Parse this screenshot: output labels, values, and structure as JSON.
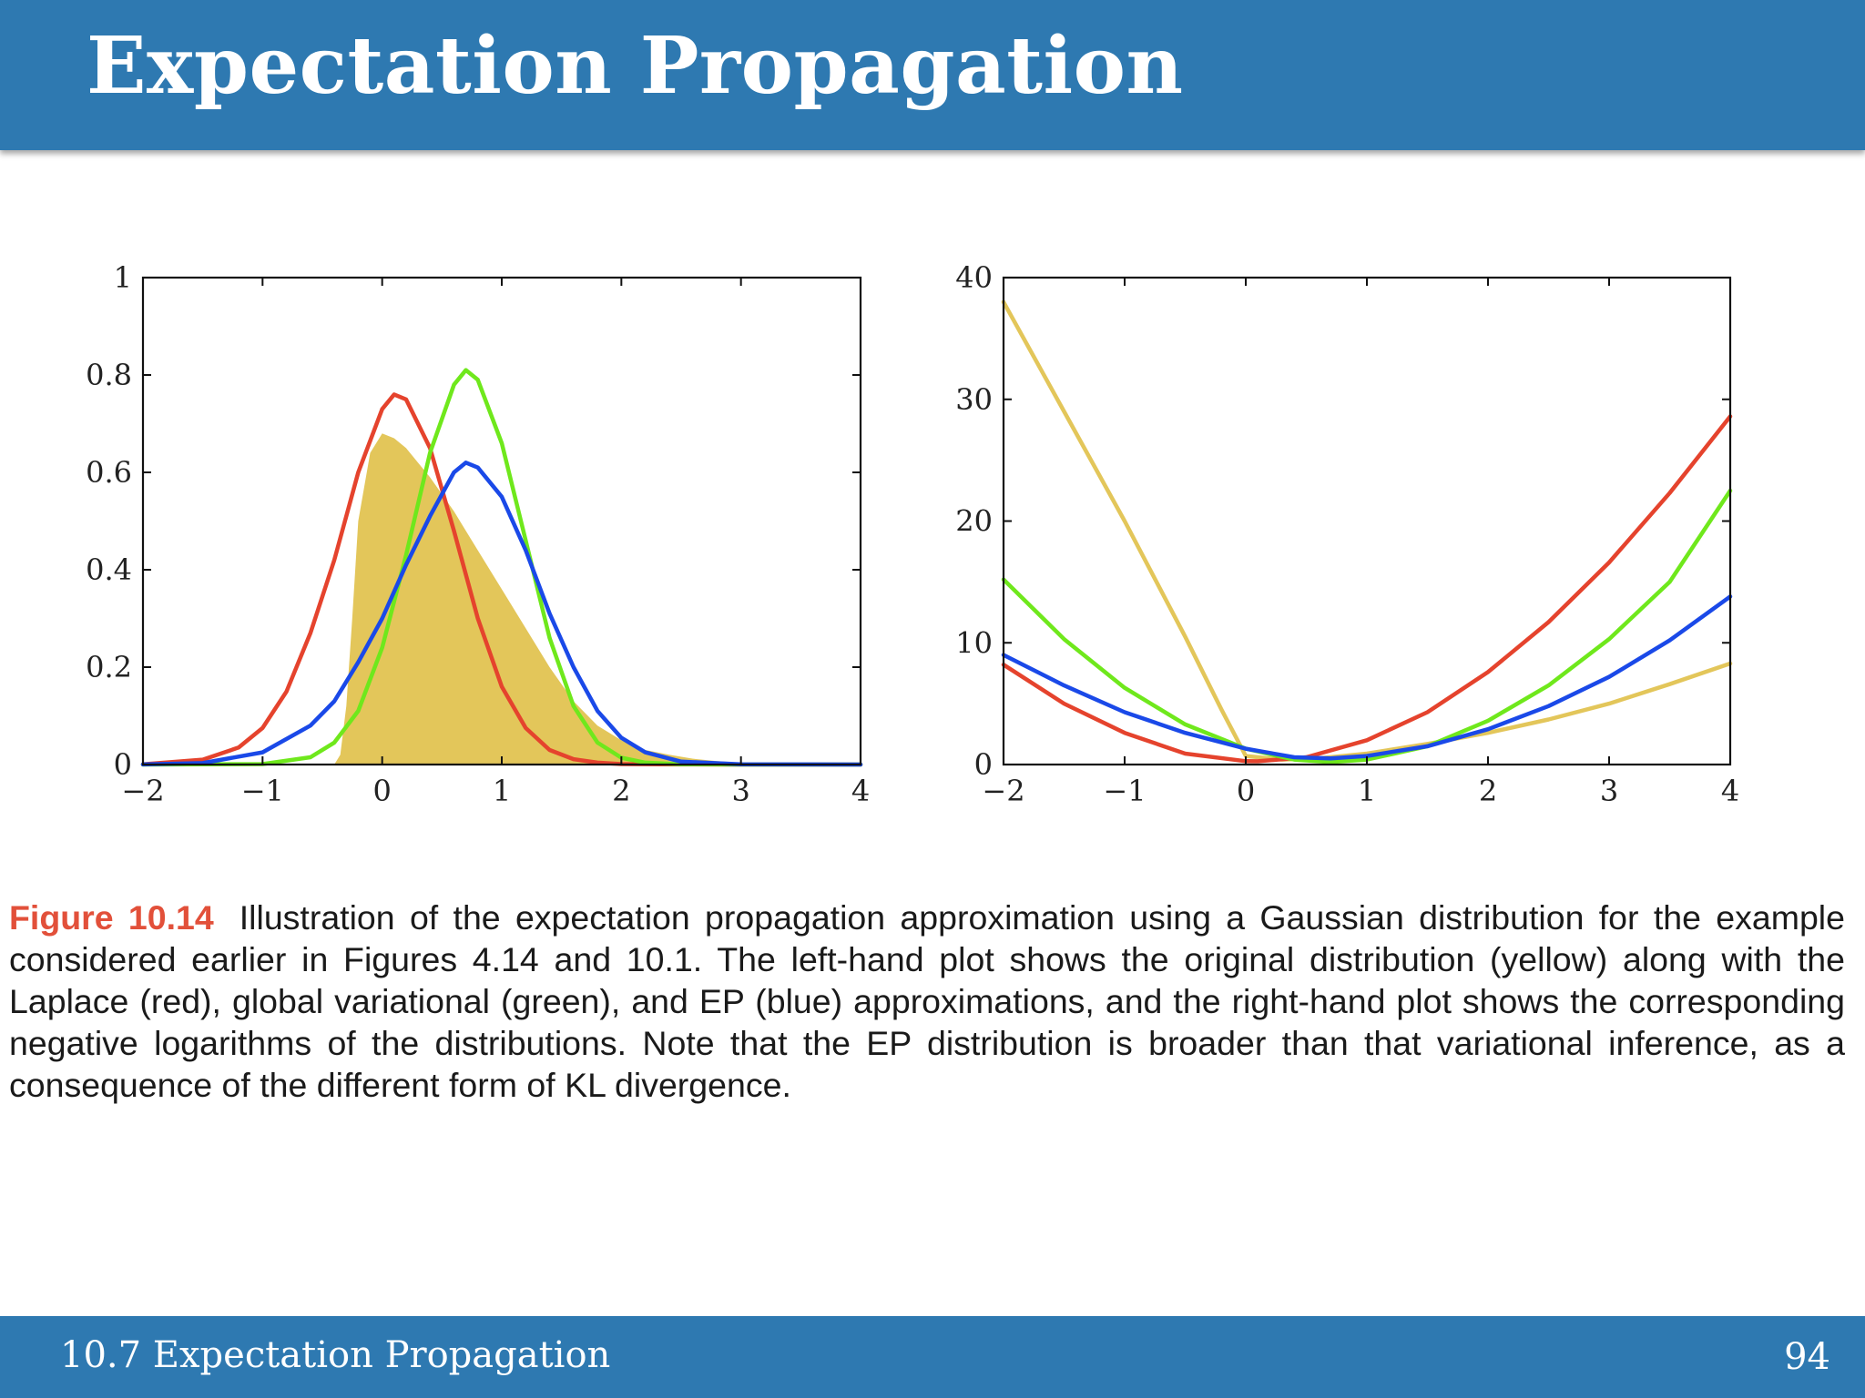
{
  "slide": {
    "title": "Expectation Propagation",
    "footer_section": "10.7 Expectation Propagation",
    "page_number": "94"
  },
  "caption": {
    "label": "Figure 10.14",
    "text": "Illustration of the expectation propagation approximation using a Gaussian distribution for the example considered earlier in Figures 4.14 and 10.1. The left-hand plot shows the original distribution (yellow) along with the Laplace (red), global variational (green), and EP (blue) approximations, and the right-hand plot shows the corresponding negative logarithms of the distributions. Note that the EP distribution is broader than that variational inference, as a consequence of the different form of KL divergence."
  },
  "colors": {
    "header_bg": "#2e79b1",
    "caption_label": "#e2503a",
    "yellow": "#e3c65a",
    "red": "#e5432d",
    "green": "#6fe81c",
    "blue": "#1a49e8"
  },
  "chart_data": [
    {
      "type": "line",
      "title": "",
      "xlabel": "",
      "ylabel": "",
      "xlim": [
        -2,
        4
      ],
      "ylim": [
        0,
        1
      ],
      "xticks": [
        -2,
        -1,
        0,
        1,
        2,
        3,
        4
      ],
      "xtick_labels": [
        "−2",
        "−1",
        "0",
        "1",
        "2",
        "3",
        "4"
      ],
      "yticks": [
        0,
        0.2,
        0.4,
        0.6,
        0.8,
        1
      ],
      "ytick_labels": [
        "0",
        "0.2",
        "0.4",
        "0.6",
        "0.8",
        "1"
      ],
      "series": [
        {
          "color": "#e3c65a",
          "fill": true,
          "x": [
            -2,
            -0.4,
            -0.35,
            -0.3,
            -0.25,
            -0.2,
            -0.1,
            0,
            0.1,
            0.2,
            0.4,
            0.6,
            0.8,
            1.0,
            1.2,
            1.4,
            1.6,
            1.8,
            2.0,
            2.2,
            2.4,
            2.6,
            2.8,
            3.0,
            3.5,
            4.0
          ],
          "y": [
            0,
            0,
            0.02,
            0.12,
            0.3,
            0.5,
            0.64,
            0.68,
            0.67,
            0.65,
            0.59,
            0.52,
            0.44,
            0.36,
            0.28,
            0.2,
            0.13,
            0.08,
            0.05,
            0.03,
            0.02,
            0.012,
            0.007,
            0.004,
            0.001,
            0
          ]
        },
        {
          "color": "#e5432d",
          "fill": false,
          "x": [
            -2,
            -1.5,
            -1.2,
            -1.0,
            -0.8,
            -0.6,
            -0.4,
            -0.2,
            0,
            0.1,
            0.2,
            0.4,
            0.6,
            0.8,
            1.0,
            1.2,
            1.4,
            1.6,
            1.8,
            2.0,
            2.5,
            3.0,
            4.0
          ],
          "y": [
            0.0006,
            0.01,
            0.035,
            0.075,
            0.15,
            0.27,
            0.42,
            0.6,
            0.73,
            0.76,
            0.75,
            0.65,
            0.48,
            0.3,
            0.16,
            0.075,
            0.03,
            0.011,
            0.004,
            0.001,
            0.0001,
            0,
            0
          ]
        },
        {
          "color": "#6fe81c",
          "fill": false,
          "x": [
            -2,
            -1.0,
            -0.6,
            -0.4,
            -0.2,
            0,
            0.2,
            0.4,
            0.6,
            0.7,
            0.8,
            1.0,
            1.2,
            1.4,
            1.6,
            1.8,
            2.0,
            2.2,
            2.5,
            3.0,
            4.0
          ],
          "y": [
            0,
            0.001,
            0.015,
            0.045,
            0.11,
            0.24,
            0.43,
            0.64,
            0.78,
            0.81,
            0.79,
            0.66,
            0.46,
            0.26,
            0.12,
            0.045,
            0.014,
            0.004,
            0.0005,
            0,
            0
          ]
        },
        {
          "color": "#1a49e8",
          "fill": false,
          "x": [
            -2,
            -1.5,
            -1.0,
            -0.6,
            -0.4,
            -0.2,
            0,
            0.2,
            0.4,
            0.6,
            0.7,
            0.8,
            1.0,
            1.2,
            1.4,
            1.6,
            1.8,
            2.0,
            2.2,
            2.5,
            3.0,
            4.0
          ],
          "y": [
            0.0002,
            0.003,
            0.025,
            0.08,
            0.13,
            0.21,
            0.3,
            0.41,
            0.51,
            0.6,
            0.62,
            0.61,
            0.55,
            0.44,
            0.31,
            0.2,
            0.11,
            0.055,
            0.025,
            0.006,
            0.0005,
            0
          ]
        }
      ]
    },
    {
      "type": "line",
      "title": "",
      "xlabel": "",
      "ylabel": "",
      "xlim": [
        -2,
        4
      ],
      "ylim": [
        0,
        40
      ],
      "xticks": [
        -2,
        -1,
        0,
        1,
        2,
        3,
        4
      ],
      "xtick_labels": [
        "−2",
        "−1",
        "0",
        "1",
        "2",
        "3",
        "4"
      ],
      "yticks": [
        0,
        10,
        20,
        30,
        40
      ],
      "ytick_labels": [
        "0",
        "10",
        "20",
        "30",
        "40"
      ],
      "series": [
        {
          "color": "#e3c65a",
          "fill": false,
          "x": [
            -2,
            -1.5,
            -1.0,
            -0.5,
            -0.2,
            0,
            0.3,
            0.6,
            1.0,
            1.5,
            2.0,
            2.5,
            3.0,
            3.5,
            4.0
          ],
          "y": [
            38,
            29,
            20,
            10.5,
            4.5,
            0.7,
            0.4,
            0.5,
            0.9,
            1.7,
            2.6,
            3.7,
            5.0,
            6.6,
            8.3
          ]
        },
        {
          "color": "#e5432d",
          "fill": false,
          "x": [
            -2,
            -1.5,
            -1.0,
            -0.5,
            0,
            0.1,
            0.5,
            1.0,
            1.5,
            2.0,
            2.5,
            3.0,
            3.5,
            4.0
          ],
          "y": [
            8.2,
            5.0,
            2.6,
            0.9,
            0.28,
            0.27,
            0.6,
            2.0,
            4.3,
            7.6,
            11.7,
            16.6,
            22.3,
            28.6
          ]
        },
        {
          "color": "#6fe81c",
          "fill": false,
          "x": [
            -2,
            -1.5,
            -1.0,
            -0.5,
            0,
            0.4,
            0.7,
            1.0,
            1.5,
            2.0,
            2.5,
            3.0,
            3.5,
            4.0
          ],
          "y": [
            15.2,
            10.3,
            6.3,
            3.3,
            1.3,
            0.4,
            0.2,
            0.4,
            1.5,
            3.6,
            6.5,
            10.3,
            15.0,
            22.5
          ]
        },
        {
          "color": "#1a49e8",
          "fill": false,
          "x": [
            -2,
            -1.5,
            -1.0,
            -0.5,
            0,
            0.4,
            0.7,
            1.0,
            1.5,
            2.0,
            2.5,
            3.0,
            3.5,
            4.0
          ],
          "y": [
            9.0,
            6.5,
            4.3,
            2.6,
            1.3,
            0.6,
            0.5,
            0.7,
            1.5,
            2.9,
            4.8,
            7.2,
            10.2,
            13.8
          ]
        }
      ]
    }
  ]
}
